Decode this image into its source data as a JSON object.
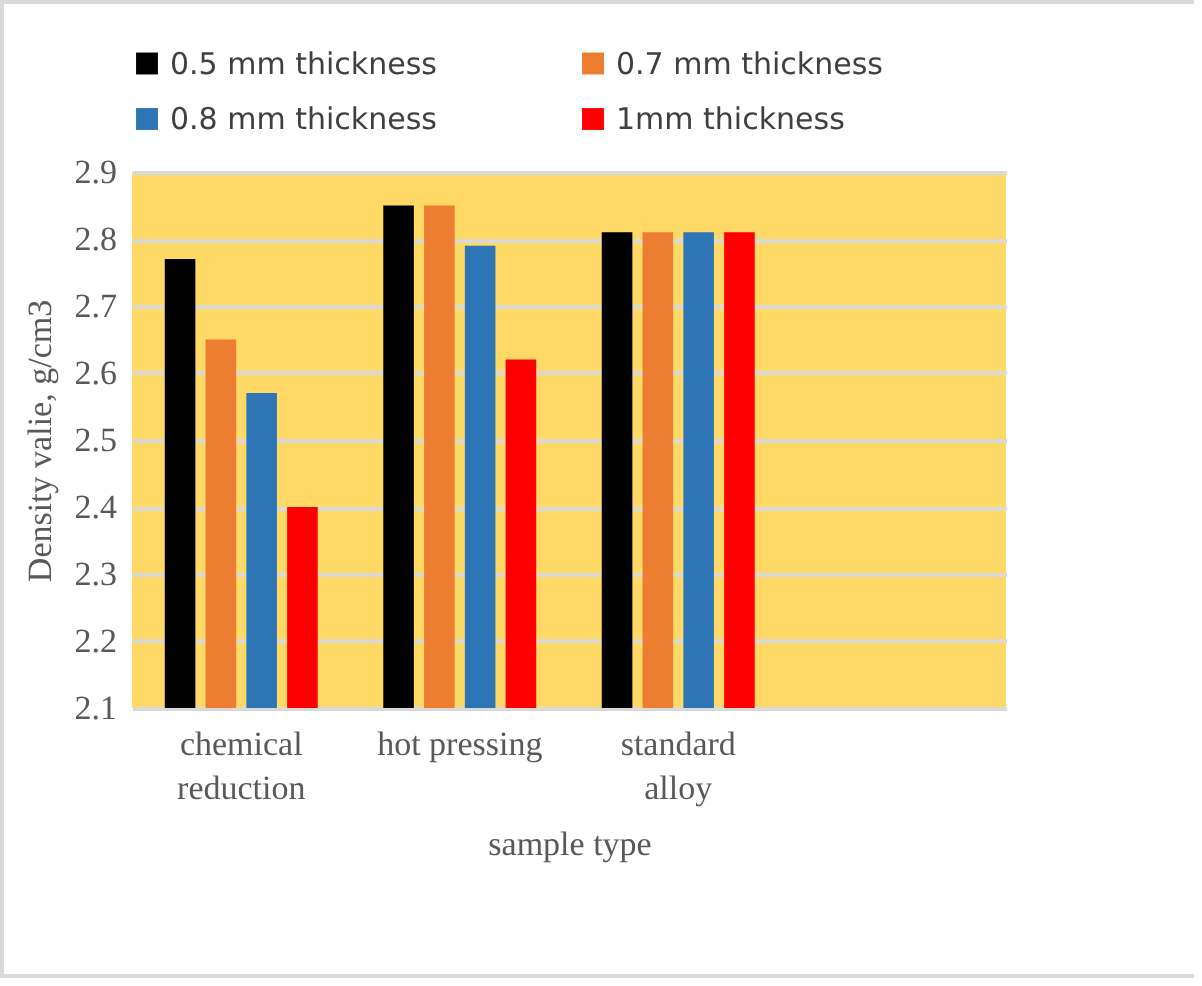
{
  "chart_data": {
    "type": "bar",
    "xlabel": "sample  type",
    "ylabel": "Density  valie, g/cm3",
    "categories": [
      "chemical reduction",
      "hot pressing",
      "standard alloy",
      null
    ],
    "series": [
      {
        "name": "0.5 mm thickness",
        "color": "#000000",
        "values": [
          2.77,
          2.85,
          2.81,
          null
        ]
      },
      {
        "name": "0.7 mm thickness",
        "color": "#ed7d31",
        "values": [
          2.65,
          2.85,
          2.81,
          null
        ]
      },
      {
        "name": "0.8 mm thickness",
        "color": "#2e75b6",
        "values": [
          2.57,
          2.79,
          2.81,
          null
        ]
      },
      {
        "name": "1mm thickness",
        "color": "#ff0000",
        "values": [
          2.4,
          2.62,
          2.81,
          null
        ]
      }
    ],
    "ylim": [
      2.1,
      2.9
    ],
    "yticks": [
      2.1,
      2.2,
      2.3,
      2.4,
      2.5,
      2.6,
      2.7,
      2.8,
      2.9
    ],
    "grid": "y",
    "legend": "top"
  }
}
